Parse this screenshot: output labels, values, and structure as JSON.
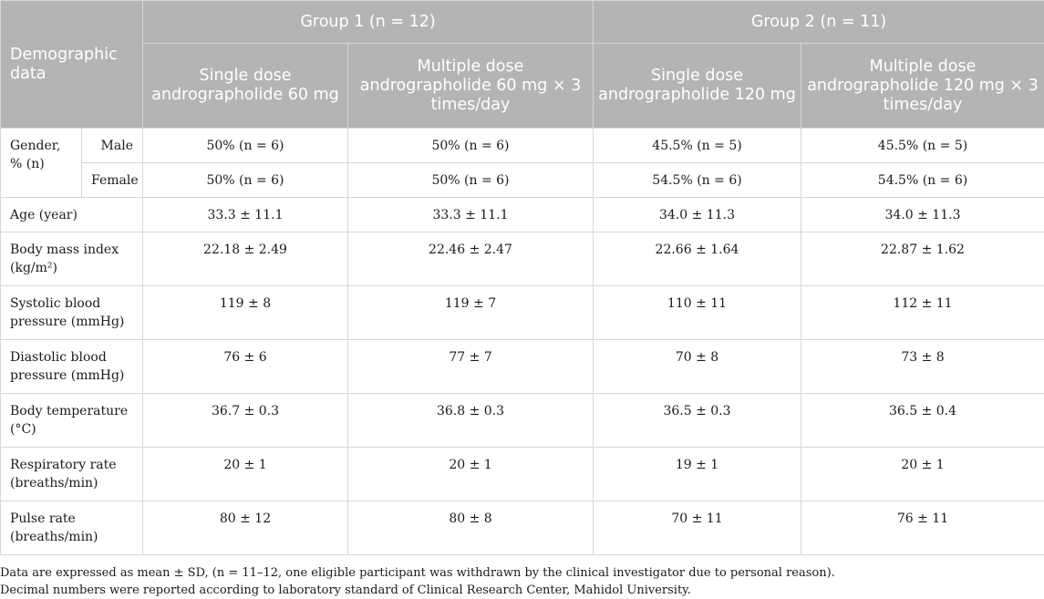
{
  "header": {
    "demographic_label": "Demographic data",
    "group1": "Group 1 (n = 12)",
    "group2": "Group 2 (n = 11)",
    "columns": [
      "Single dose andrographolide 60 mg",
      "Multiple dose andrographolide 60 mg × 3 times/day",
      "Single dose andrographolide 120 mg",
      "Multiple dose andrographolide 120 mg × 3 times/day"
    ]
  },
  "rows": {
    "gender": {
      "label": "Gender, % (n)",
      "male": {
        "label": "Male",
        "values": [
          "50% (n = 6)",
          "50% (n = 6)",
          "45.5% (n = 5)",
          "45.5% (n = 5)"
        ]
      },
      "female": {
        "label": "Female",
        "values": [
          "50% (n = 6)",
          "50% (n = 6)",
          "54.5% (n = 6)",
          "54.5% (n = 6)"
        ]
      }
    },
    "age": {
      "label": "Age (year)",
      "values": [
        "33.3 ± 11.1",
        "33.3 ± 11.1",
        "34.0 ± 11.3",
        "34.0 ± 11.3"
      ]
    },
    "bmi": {
      "label": "Body mass index (kg/m²)",
      "values": [
        "22.18 ± 2.49",
        "22.46 ± 2.47",
        "22.66 ± 1.64",
        "22.87 ± 1.62"
      ]
    },
    "systolic": {
      "label": "Systolic blood pressure (mmHg)",
      "values": [
        "119 ± 8",
        "119 ± 7",
        "110 ± 11",
        "112 ± 11"
      ]
    },
    "diastolic": {
      "label": "Diastolic blood pressure (mmHg)",
      "values": [
        "76 ± 6",
        "77 ± 7",
        "70 ± 8",
        "73 ± 8"
      ]
    },
    "temperature": {
      "label": "Body temperature (°C)",
      "values": [
        "36.7 ± 0.3",
        "36.8 ± 0.3",
        "36.5 ± 0.3",
        "36.5 ± 0.4"
      ]
    },
    "respiratory": {
      "label": "Respiratory rate (breaths/min)",
      "values": [
        "20 ± 1",
        "20 ± 1",
        "19 ± 1",
        "20 ± 1"
      ]
    },
    "pulse": {
      "label": "Pulse rate (breaths/min)",
      "values": [
        "80 ± 12",
        "80 ± 8",
        "70 ± 11",
        "76 ± 11"
      ]
    }
  },
  "notes": [
    "Data are expressed as mean ± SD, (n = 11–12, one eligible participant was withdrawn by the clinical investigator due to personal reason).",
    "Decimal numbers were reported according to laboratory standard of Clinical Research Center, Mahidol University."
  ]
}
